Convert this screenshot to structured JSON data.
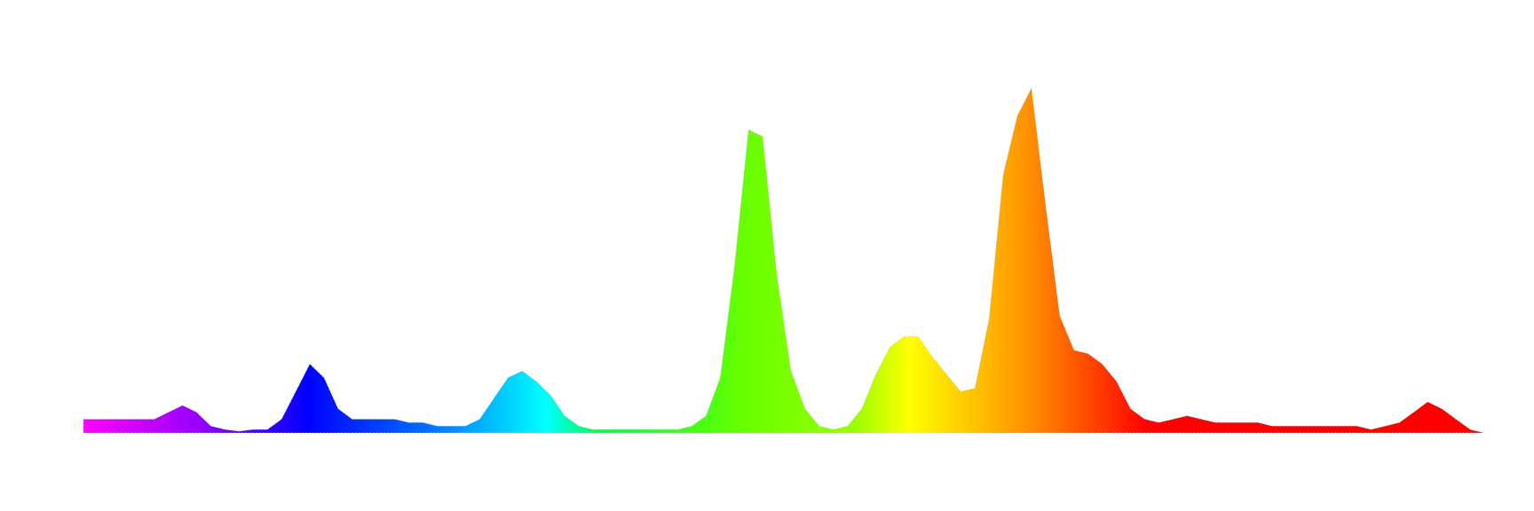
{
  "chart_data": {
    "type": "area",
    "values": [
      4,
      4,
      4,
      4,
      4,
      4,
      6,
      8,
      6,
      2,
      1,
      0.5,
      1,
      1,
      4,
      12,
      20,
      16,
      7,
      4,
      4,
      4,
      4,
      3,
      3,
      2,
      2,
      2,
      4,
      10,
      16,
      18,
      15,
      11,
      5,
      2,
      1,
      1,
      1,
      1,
      1,
      1,
      1,
      2,
      5,
      16,
      48,
      88,
      86,
      46,
      18,
      7,
      2,
      1,
      2,
      7,
      17,
      25,
      28,
      28,
      22,
      17,
      12,
      13,
      33,
      75,
      92,
      100,
      66,
      34,
      24,
      23,
      20,
      15,
      7,
      4,
      3,
      4,
      5,
      4,
      3,
      3,
      3,
      3,
      2,
      2,
      2,
      2,
      2,
      2,
      2,
      1,
      2,
      3,
      6,
      9,
      7,
      4,
      1,
      0
    ],
    "colors": [
      "#ff00ff",
      "#9900ff",
      "#0000ff",
      "#0066ff",
      "#00ffff",
      "#00ff44",
      "#66ff00",
      "#99ff00",
      "#ffff00",
      "#ff8800",
      "#ff0000",
      "#ff0000"
    ],
    "ylim": [
      0,
      105
    ]
  }
}
